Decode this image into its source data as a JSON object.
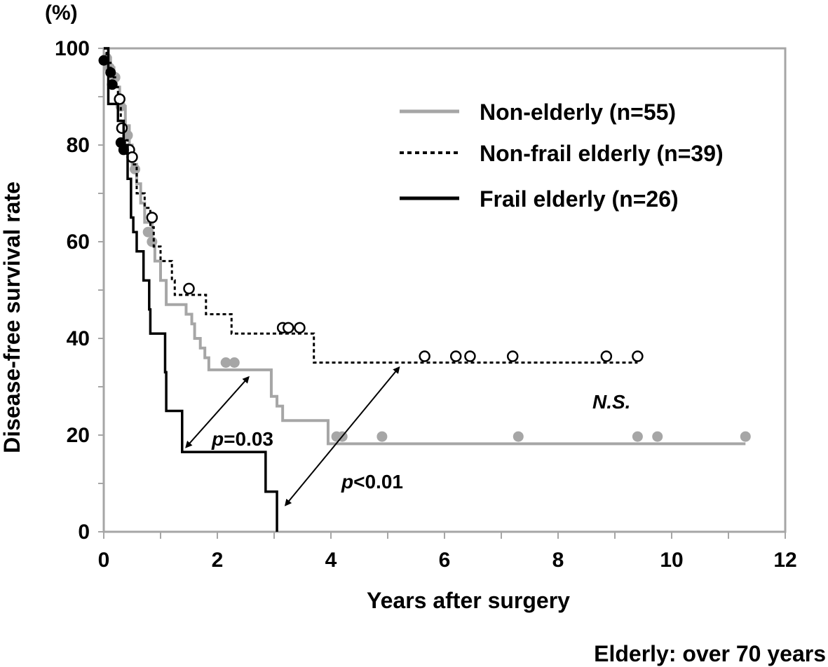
{
  "chart_data": {
    "type": "line",
    "subtype": "kaplan-meier",
    "unit_label": "(%)",
    "ylabel": "Disease-free survival rate",
    "xlabel": "Years after surgery",
    "footnote": "Elderly: over 70 years",
    "xlim": [
      0,
      12
    ],
    "ylim": [
      0,
      100
    ],
    "xticks": [
      0,
      2,
      4,
      6,
      8,
      10,
      12
    ],
    "xtick_labels": [
      "0",
      "2",
      "4",
      "6",
      "8",
      "10",
      "12"
    ],
    "yticks": [
      0,
      20,
      40,
      60,
      80,
      100
    ],
    "ytick_labels": [
      "0",
      "20",
      "40",
      "60",
      "80",
      "100"
    ],
    "legend_position": "top-right",
    "series": [
      {
        "name": "Non-elderly (n=55)",
        "style": "solid-gray",
        "color": "#a6a6a6",
        "steps": [
          [
            0,
            100
          ],
          [
            0.08,
            98
          ],
          [
            0.12,
            96
          ],
          [
            0.18,
            94
          ],
          [
            0.22,
            92
          ],
          [
            0.28,
            90
          ],
          [
            0.32,
            88
          ],
          [
            0.38,
            84
          ],
          [
            0.45,
            80
          ],
          [
            0.5,
            76
          ],
          [
            0.58,
            72
          ],
          [
            0.65,
            68
          ],
          [
            0.72,
            64
          ],
          [
            0.85,
            60
          ],
          [
            0.9,
            56
          ],
          [
            1.0,
            52
          ],
          [
            1.1,
            47
          ],
          [
            1.45,
            45
          ],
          [
            1.55,
            43
          ],
          [
            1.6,
            40
          ],
          [
            1.7,
            38
          ],
          [
            1.78,
            36
          ],
          [
            1.85,
            33.5
          ],
          [
            2.9,
            33.5
          ],
          [
            2.95,
            28
          ],
          [
            3.05,
            26
          ],
          [
            3.15,
            23
          ],
          [
            3.9,
            23
          ],
          [
            3.95,
            18.2
          ],
          [
            11.3,
            18.2
          ]
        ],
        "censored": [
          [
            0.05,
            98
          ],
          [
            0.1,
            96
          ],
          [
            0.2,
            94
          ],
          [
            0.3,
            88
          ],
          [
            0.42,
            82
          ],
          [
            0.55,
            75
          ],
          [
            0.78,
            62
          ],
          [
            0.85,
            60
          ],
          [
            2.15,
            35
          ],
          [
            2.3,
            35
          ],
          [
            4.1,
            19.7
          ],
          [
            4.2,
            19.7
          ],
          [
            4.9,
            19.7
          ],
          [
            7.3,
            19.7
          ],
          [
            9.4,
            19.7
          ],
          [
            9.75,
            19.7
          ],
          [
            11.3,
            19.7
          ]
        ]
      },
      {
        "name": "Non-frail elderly (n=39)",
        "style": "dotted-black",
        "color": "#000000",
        "steps": [
          [
            0,
            100
          ],
          [
            0.05,
            97
          ],
          [
            0.12,
            94
          ],
          [
            0.2,
            92
          ],
          [
            0.25,
            89
          ],
          [
            0.3,
            85
          ],
          [
            0.35,
            81
          ],
          [
            0.42,
            79
          ],
          [
            0.5,
            76
          ],
          [
            0.58,
            70
          ],
          [
            0.72,
            67
          ],
          [
            0.82,
            63
          ],
          [
            0.88,
            59
          ],
          [
            1.0,
            56
          ],
          [
            1.2,
            52
          ],
          [
            1.25,
            49
          ],
          [
            1.8,
            49
          ],
          [
            1.8,
            45
          ],
          [
            2.25,
            45
          ],
          [
            2.25,
            41
          ],
          [
            3.7,
            41
          ],
          [
            3.7,
            35
          ],
          [
            9.4,
            35
          ]
        ],
        "censored": [
          [
            0.28,
            89.5
          ],
          [
            0.32,
            83.5
          ],
          [
            0.45,
            79
          ],
          [
            0.5,
            77.5
          ],
          [
            0.85,
            65
          ],
          [
            1.5,
            50.3
          ],
          [
            3.15,
            42.2
          ],
          [
            3.25,
            42.2
          ],
          [
            3.45,
            42.2
          ],
          [
            5.65,
            36.3
          ],
          [
            6.2,
            36.3
          ],
          [
            6.45,
            36.3
          ],
          [
            7.2,
            36.3
          ],
          [
            8.85,
            36.3
          ],
          [
            9.4,
            36.3
          ]
        ]
      },
      {
        "name": "Frail elderly (n=26)",
        "style": "solid-black",
        "color": "#000000",
        "steps": [
          [
            0,
            100
          ],
          [
            0.08,
            88.5
          ],
          [
            0.2,
            88.5
          ],
          [
            0.25,
            85
          ],
          [
            0.35,
            80
          ],
          [
            0.42,
            73
          ],
          [
            0.48,
            65
          ],
          [
            0.52,
            62
          ],
          [
            0.58,
            58
          ],
          [
            0.68,
            58
          ],
          [
            0.7,
            52
          ],
          [
            0.8,
            52
          ],
          [
            0.8,
            46
          ],
          [
            0.82,
            41
          ],
          [
            1.0,
            41
          ],
          [
            1.08,
            33
          ],
          [
            1.1,
            25
          ],
          [
            1.35,
            25
          ],
          [
            1.38,
            16.5
          ],
          [
            2.85,
            16.5
          ],
          [
            2.85,
            8.3
          ],
          [
            3.05,
            8.3
          ],
          [
            3.05,
            0
          ]
        ],
        "censored": [
          [
            0.0,
            97.5
          ],
          [
            0.12,
            95
          ],
          [
            0.15,
            92.5
          ],
          [
            0.3,
            80.5
          ],
          [
            0.35,
            79
          ]
        ]
      }
    ],
    "annotations": [
      {
        "italic": "p",
        "text": "=0.03"
      },
      {
        "italic": "p",
        "text": "<0.01"
      },
      {
        "italic": "N.S.",
        "text": ""
      }
    ],
    "arrows": [
      {
        "from": [
          1.45,
          17.5
        ],
        "to": [
          2.55,
          32
        ]
      },
      {
        "from": [
          3.2,
          5.5
        ],
        "to": [
          5.2,
          34
        ]
      }
    ]
  }
}
